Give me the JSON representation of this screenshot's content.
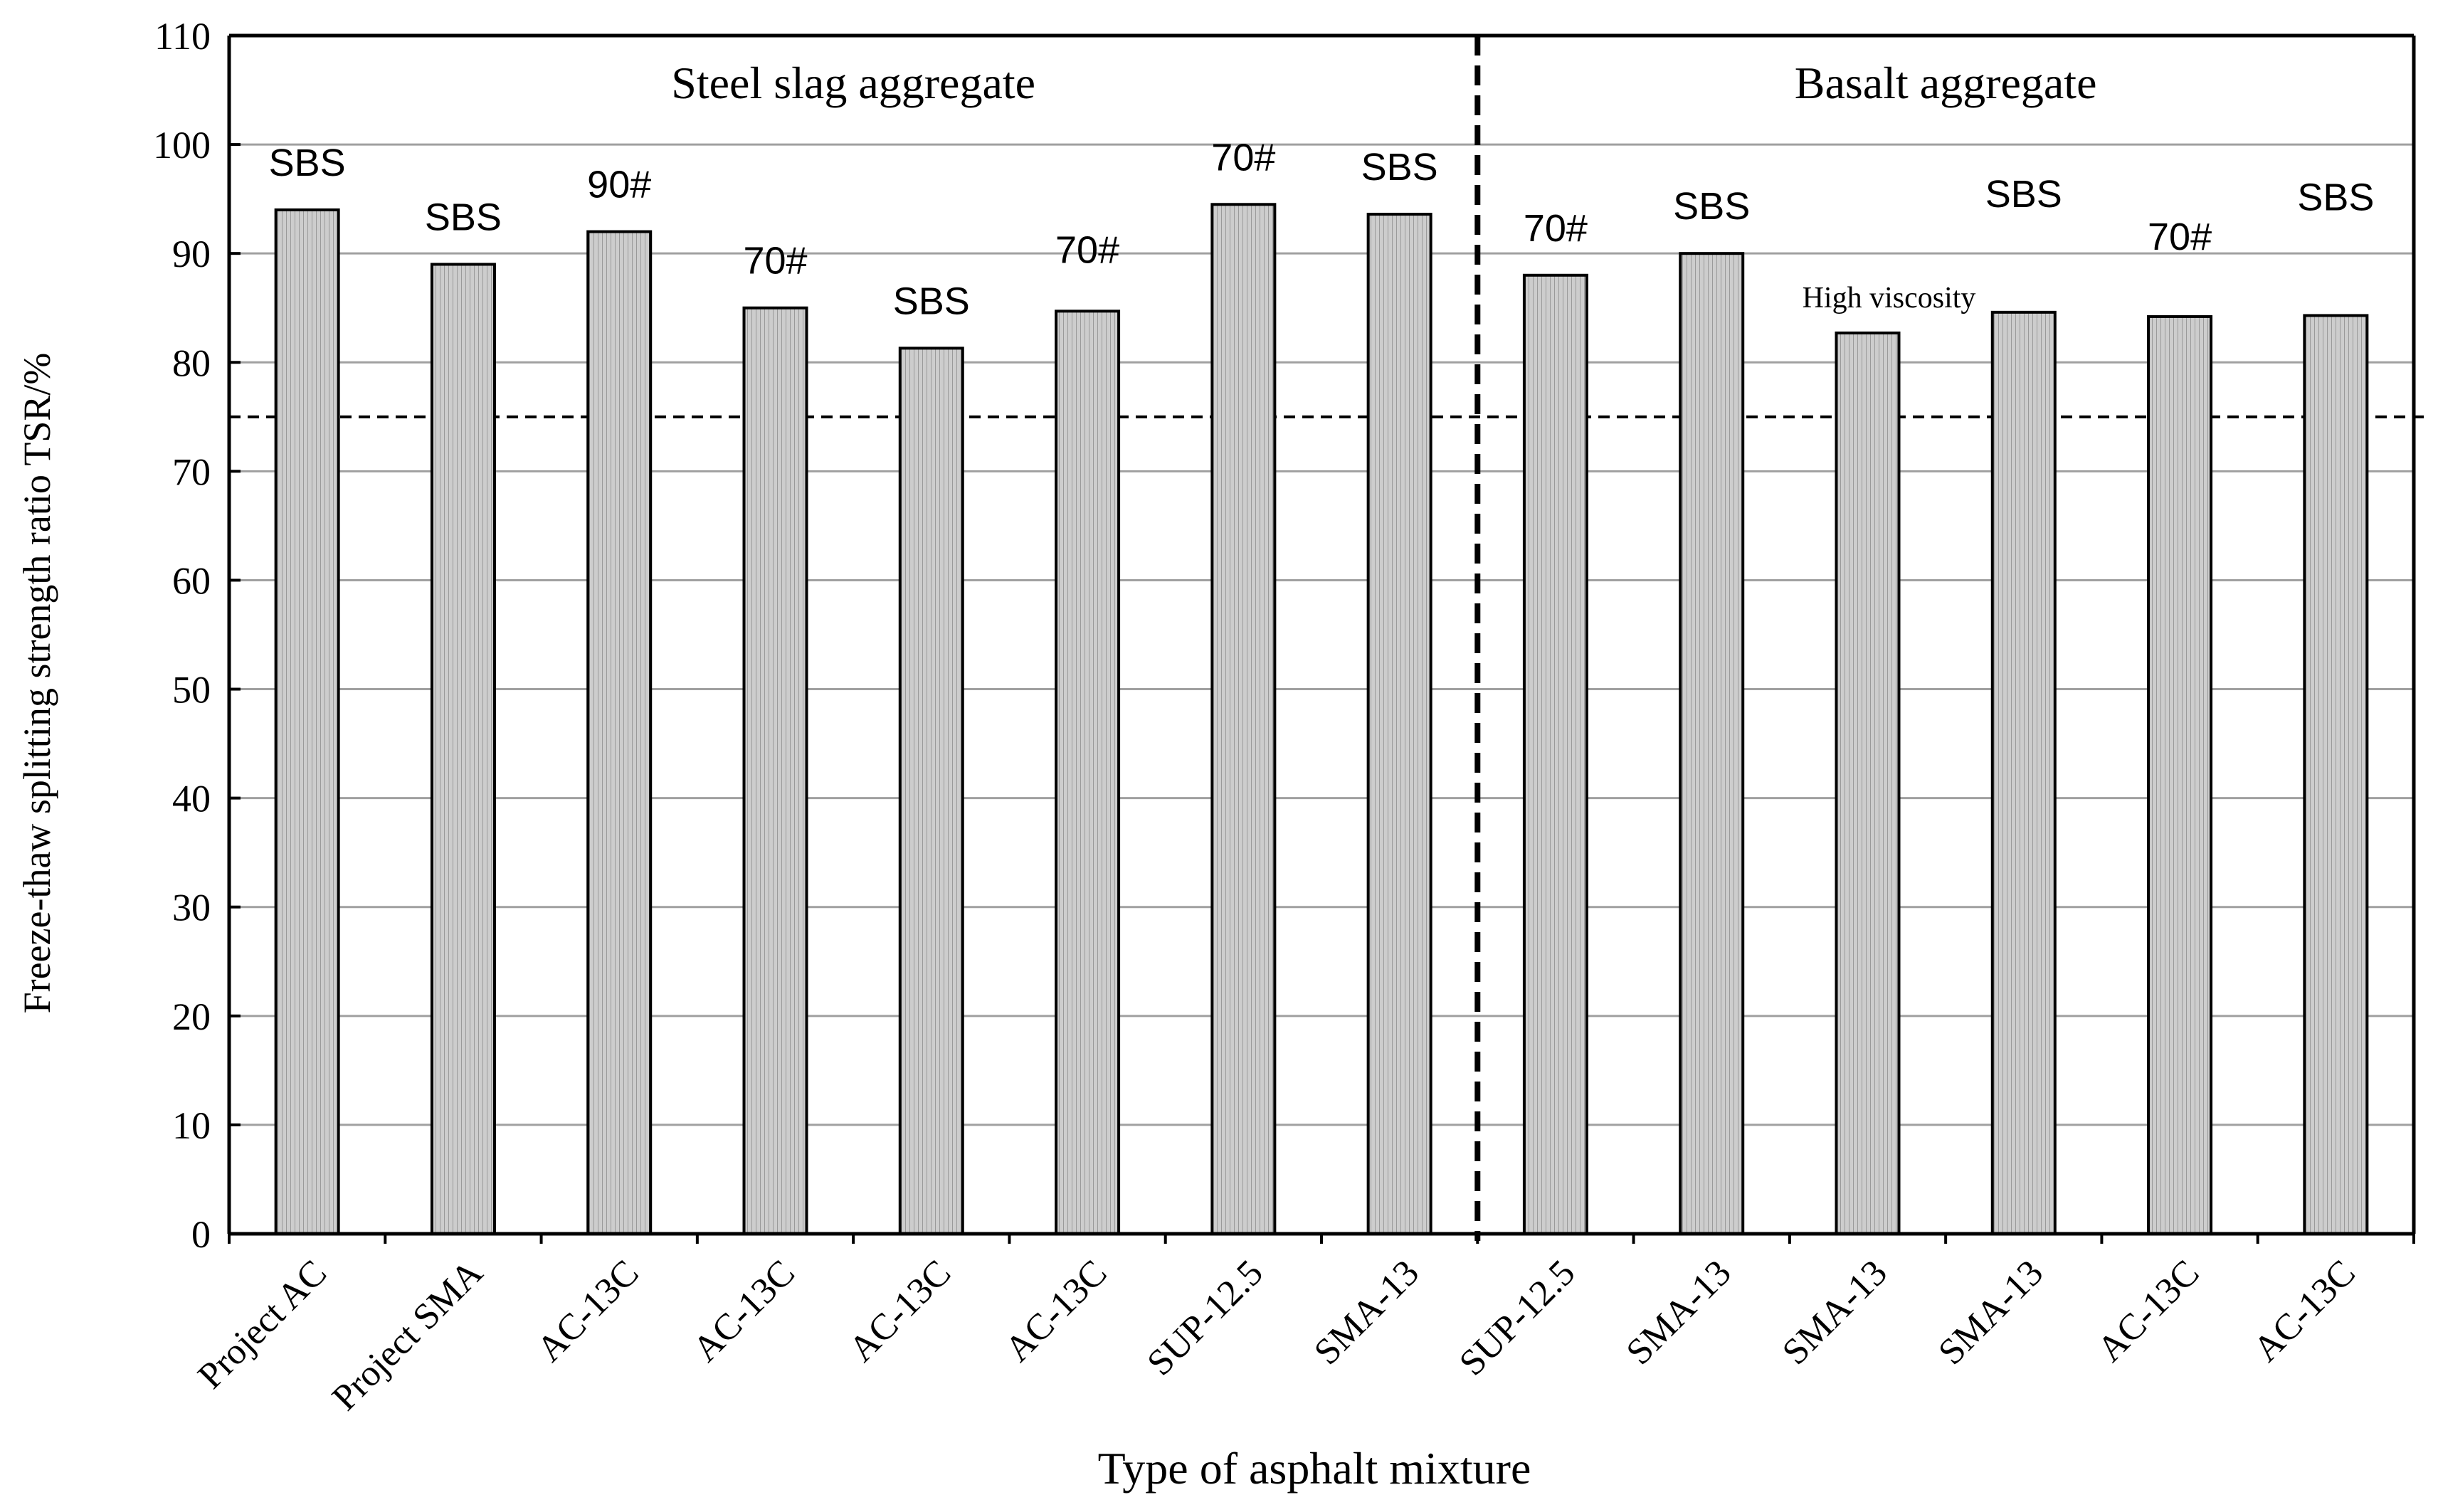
{
  "chart_data": {
    "type": "bar",
    "ylabel": "Freeze-thaw splitting strength ratio TSR/%",
    "xlabel": "Type of asphalt mixture",
    "ylim": [
      0,
      110
    ],
    "yticks": [
      0,
      10,
      20,
      30,
      40,
      50,
      60,
      70,
      80,
      90,
      100,
      110
    ],
    "grid": true,
    "reference_line": 75,
    "groups": [
      {
        "label": "Steel slag aggregate",
        "start": 0,
        "end": 7
      },
      {
        "label": "Basalt aggregate",
        "start": 8,
        "end": 13
      }
    ],
    "categories": [
      "Project AC",
      "Project SMA",
      "AC-13C",
      "AC-13C",
      "AC-13C",
      "AC-13C",
      "SUP-12.5",
      "SMA-13",
      "SUP-12.5",
      "SMA-13",
      "SMA-13",
      "SMA-13",
      "AC-13C",
      "AC-13C"
    ],
    "values": [
      94,
      89,
      92,
      85,
      81.3,
      84.7,
      94.5,
      93.6,
      88,
      90,
      82.7,
      84.6,
      84.2,
      84.3
    ],
    "bar_labels": [
      "SBS",
      "SBS",
      "90#",
      "70#",
      "SBS",
      "70#",
      "70#",
      "SBS",
      "70#",
      "SBS",
      "High viscosity",
      "SBS",
      "70#",
      "SBS"
    ]
  },
  "colors": {
    "bar_fill": "#c8c8c8",
    "bar_stroke": "#000000",
    "grid": "#a0a0a0",
    "axis": "#000000"
  }
}
